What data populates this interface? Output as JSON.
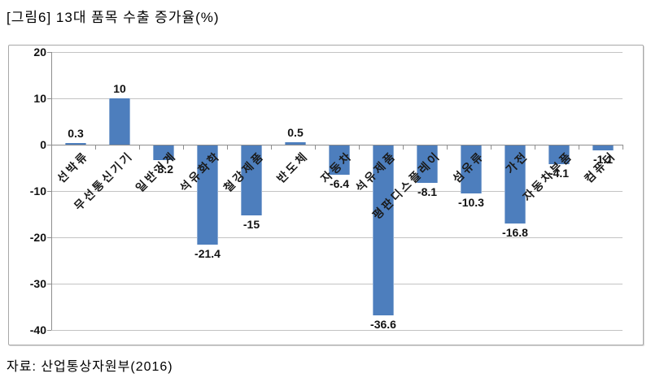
{
  "title": "[그림6] 13대 품목 수출 증가율(%)",
  "source": "자료: 산업통상자원부(2016)",
  "colors": {
    "bar": "#4D7EBD",
    "gridline": "#C3C3C3",
    "axis": "#8E8E8E",
    "text": "#111111",
    "chart_border": "#A8A8A8"
  },
  "chart_data": {
    "type": "bar",
    "title": "[그림6] 13대 품목 수출 증가율(%)",
    "categories": [
      "선박류",
      "무선통신기기",
      "일반기계",
      "석유화학",
      "철강제품",
      "반도체",
      "자동차",
      "석유제품",
      "평판디스플레이",
      "섬유류",
      "가전",
      "자동차부품",
      "컴퓨터"
    ],
    "values": [
      0.3,
      10,
      -3.2,
      -21.4,
      -15,
      0.5,
      -6.4,
      -36.6,
      -8.1,
      -10.3,
      -16.8,
      -4.1,
      -1.1
    ],
    "value_labels": [
      "0.3",
      "10",
      "-3.2",
      "-21.4",
      "-15",
      "0.5",
      "-6.4",
      "-36.6",
      "-8.1",
      "-10.3",
      "-16.8",
      "-4.1",
      "-1.1"
    ],
    "xlabel": "",
    "ylabel": "",
    "ylim": [
      -40,
      20
    ],
    "yticks": [
      20,
      10,
      0,
      -10,
      -20,
      -30,
      -40
    ],
    "grid": true,
    "legend": false,
    "bar_color": "#4D7EBD",
    "category_label_rotation_deg": -45
  }
}
